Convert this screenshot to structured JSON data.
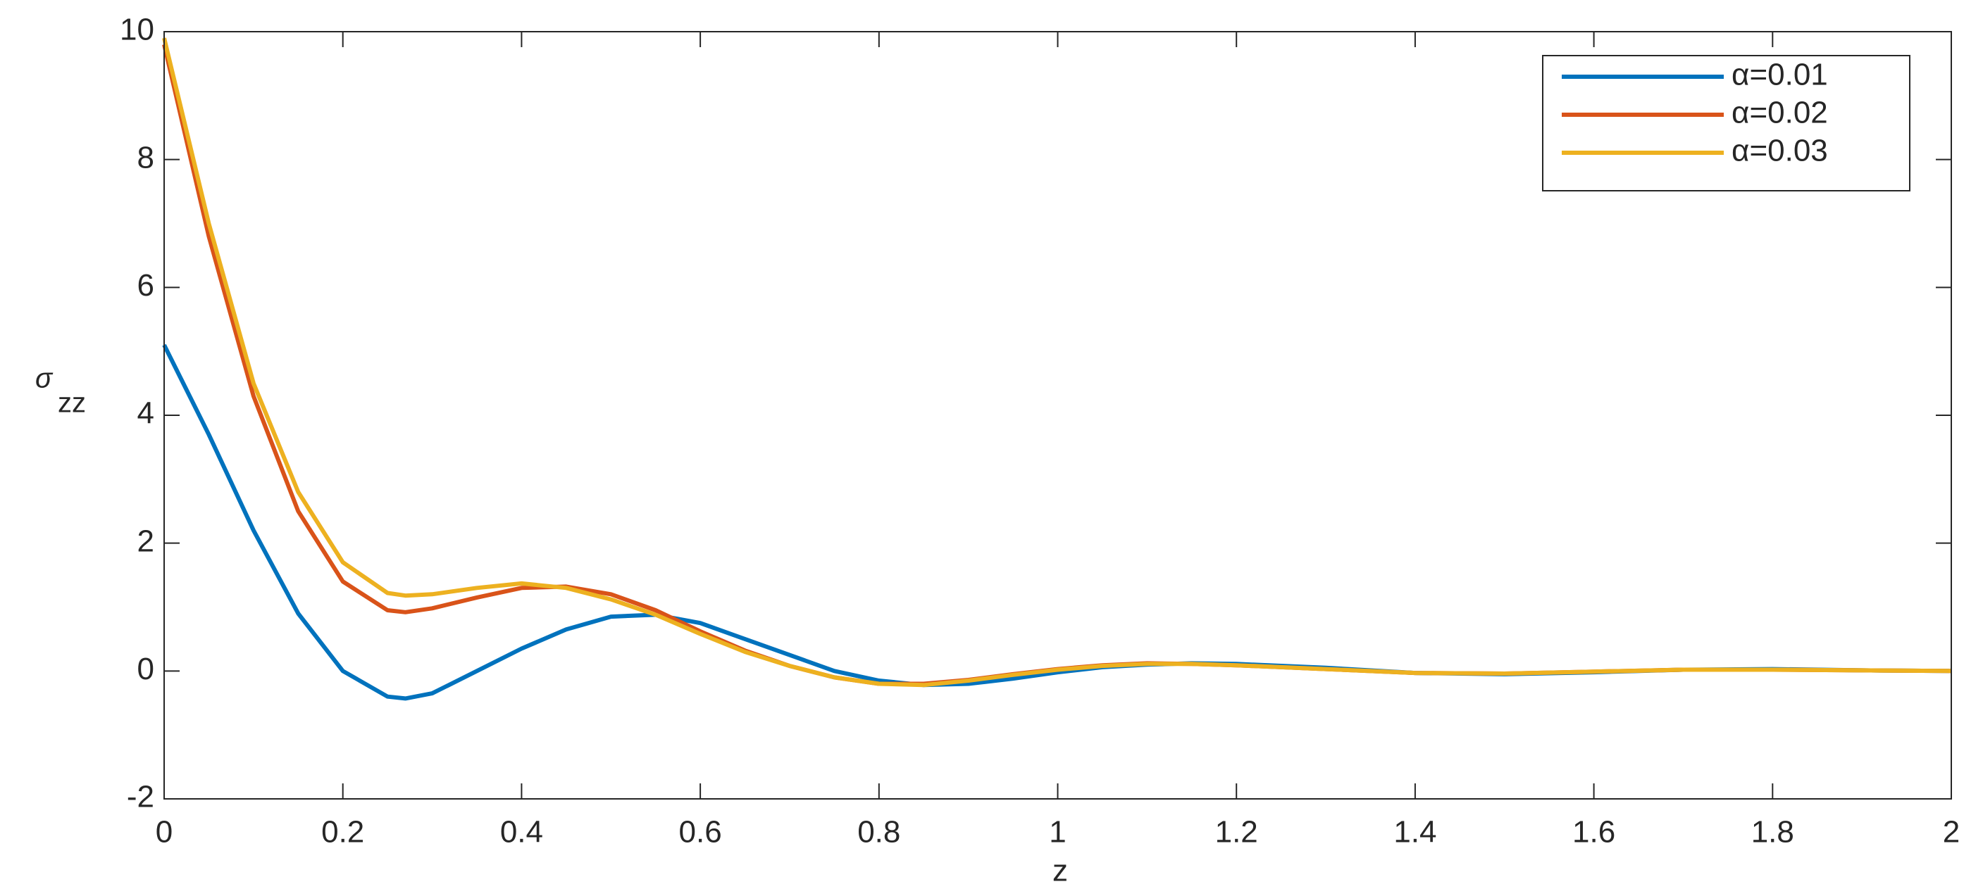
{
  "chart_data": {
    "type": "line",
    "xlabel": "z",
    "ylabel": "σ",
    "ylabel_subscript": "zz",
    "x": [
      0,
      0.05,
      0.1,
      0.15,
      0.2,
      0.25,
      0.27,
      0.3,
      0.35,
      0.4,
      0.45,
      0.5,
      0.55,
      0.6,
      0.65,
      0.7,
      0.75,
      0.8,
      0.85,
      0.9,
      0.95,
      1.0,
      1.05,
      1.1,
      1.15,
      1.2,
      1.3,
      1.4,
      1.5,
      1.6,
      1.7,
      1.8,
      1.9,
      2.0
    ],
    "series": [
      {
        "name": "α=0.01",
        "color": "#0072bd",
        "values": [
          5.1,
          3.7,
          2.2,
          0.9,
          0.0,
          -0.4,
          -0.43,
          -0.35,
          0.0,
          0.35,
          0.65,
          0.85,
          0.88,
          0.75,
          0.5,
          0.25,
          0.0,
          -0.15,
          -0.22,
          -0.2,
          -0.12,
          -0.02,
          0.06,
          0.1,
          0.12,
          0.11,
          0.05,
          -0.03,
          -0.05,
          -0.02,
          0.02,
          0.03,
          0.01,
          0
        ]
      },
      {
        "name": "α=0.02",
        "color": "#d95319",
        "values": [
          9.8,
          6.8,
          4.3,
          2.5,
          1.4,
          0.95,
          0.92,
          0.98,
          1.15,
          1.3,
          1.32,
          1.2,
          0.95,
          0.62,
          0.32,
          0.08,
          -0.1,
          -0.2,
          -0.2,
          -0.14,
          -0.05,
          0.03,
          0.09,
          0.12,
          0.11,
          0.09,
          0.03,
          -0.03,
          -0.04,
          -0.01,
          0.02,
          0.02,
          0.01,
          0
        ]
      },
      {
        "name": "α=0.03",
        "color": "#edb120",
        "values": [
          9.9,
          7.0,
          4.5,
          2.8,
          1.7,
          1.22,
          1.18,
          1.2,
          1.3,
          1.37,
          1.3,
          1.12,
          0.88,
          0.58,
          0.3,
          0.08,
          -0.1,
          -0.2,
          -0.22,
          -0.15,
          -0.06,
          0.02,
          0.08,
          0.11,
          0.11,
          0.09,
          0.03,
          -0.03,
          -0.04,
          -0.01,
          0.02,
          0.02,
          0.01,
          0
        ]
      }
    ],
    "xlim": [
      0,
      2
    ],
    "xticks": [
      0,
      0.2,
      0.4,
      0.6,
      0.8,
      1,
      1.2,
      1.4,
      1.6,
      1.8,
      2
    ],
    "ylim": [
      -2,
      10
    ],
    "yticks": [
      -2,
      0,
      2,
      4,
      6,
      8,
      10
    ],
    "grid": false,
    "legend": "upper right"
  }
}
